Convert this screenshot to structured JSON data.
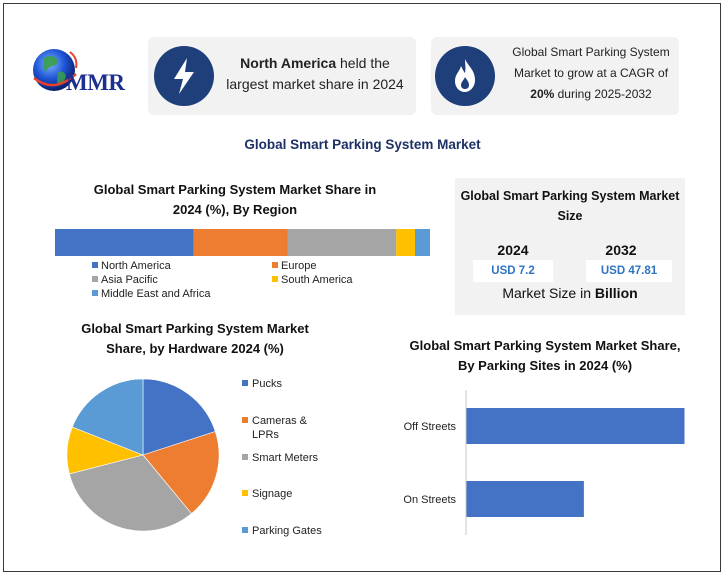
{
  "logo": {
    "text": "MMR"
  },
  "cards": [
    {
      "icon": "lightning-bolt-icon",
      "lead": "North America",
      "rest": " held the largest market share in 2024"
    },
    {
      "icon": "flame-icon",
      "line1": "Global Smart Parking System Market to grow at a CAGR of",
      "bold": "20%",
      "line2": " during 2025-2032"
    }
  ],
  "main_title": "Global Smart Parking System Market",
  "market_size": {
    "title": "Global Smart Parking System Market Size",
    "years": [
      "2024",
      "2032"
    ],
    "values": [
      "USD 7.2",
      "USD 47.81"
    ],
    "footer_prefix": "Market Size in ",
    "footer_bold": "Billion"
  },
  "colors": {
    "blue": "#4472c4",
    "orange": "#ed7d31",
    "gray": "#a5a5a5",
    "yellow": "#ffc000",
    "lightblue": "#5b9bd5"
  },
  "chart_data": [
    {
      "type": "bar",
      "orientation": "horizontal-stacked-100",
      "title": "Global Smart Parking System Market Share in 2024 (%), By Region",
      "series": [
        {
          "name": "North America",
          "values": [
            37
          ],
          "color": "#4472c4"
        },
        {
          "name": "Europe",
          "values": [
            25
          ],
          "color": "#ed7d31"
        },
        {
          "name": "Asia Pacific",
          "values": [
            29
          ],
          "color": "#a5a5a5"
        },
        {
          "name": "South America",
          "values": [
            5
          ],
          "color": "#ffc000"
        },
        {
          "name": "Middle East and Africa",
          "values": [
            4
          ],
          "color": "#5b9bd5"
        }
      ],
      "legend_position": "bottom"
    },
    {
      "type": "pie",
      "title": "Global Smart Parking System Market Share, by Hardware 2024 (%)",
      "categories": [
        "Pucks",
        "Cameras & LPRs",
        "Smart Meters",
        "Signage",
        "Parking Gates"
      ],
      "values": [
        20,
        19,
        32,
        10,
        19
      ],
      "colors": [
        "#4472c4",
        "#ed7d31",
        "#a5a5a5",
        "#ffc000",
        "#5b9bd5"
      ],
      "legend_position": "right"
    },
    {
      "type": "bar",
      "orientation": "horizontal",
      "title": "Global Smart Parking System Market Share, By Parking Sites in 2024 (%)",
      "categories": [
        "Off Streets",
        "On Streets"
      ],
      "values": [
        65,
        35
      ],
      "color": "#4472c4"
    }
  ]
}
